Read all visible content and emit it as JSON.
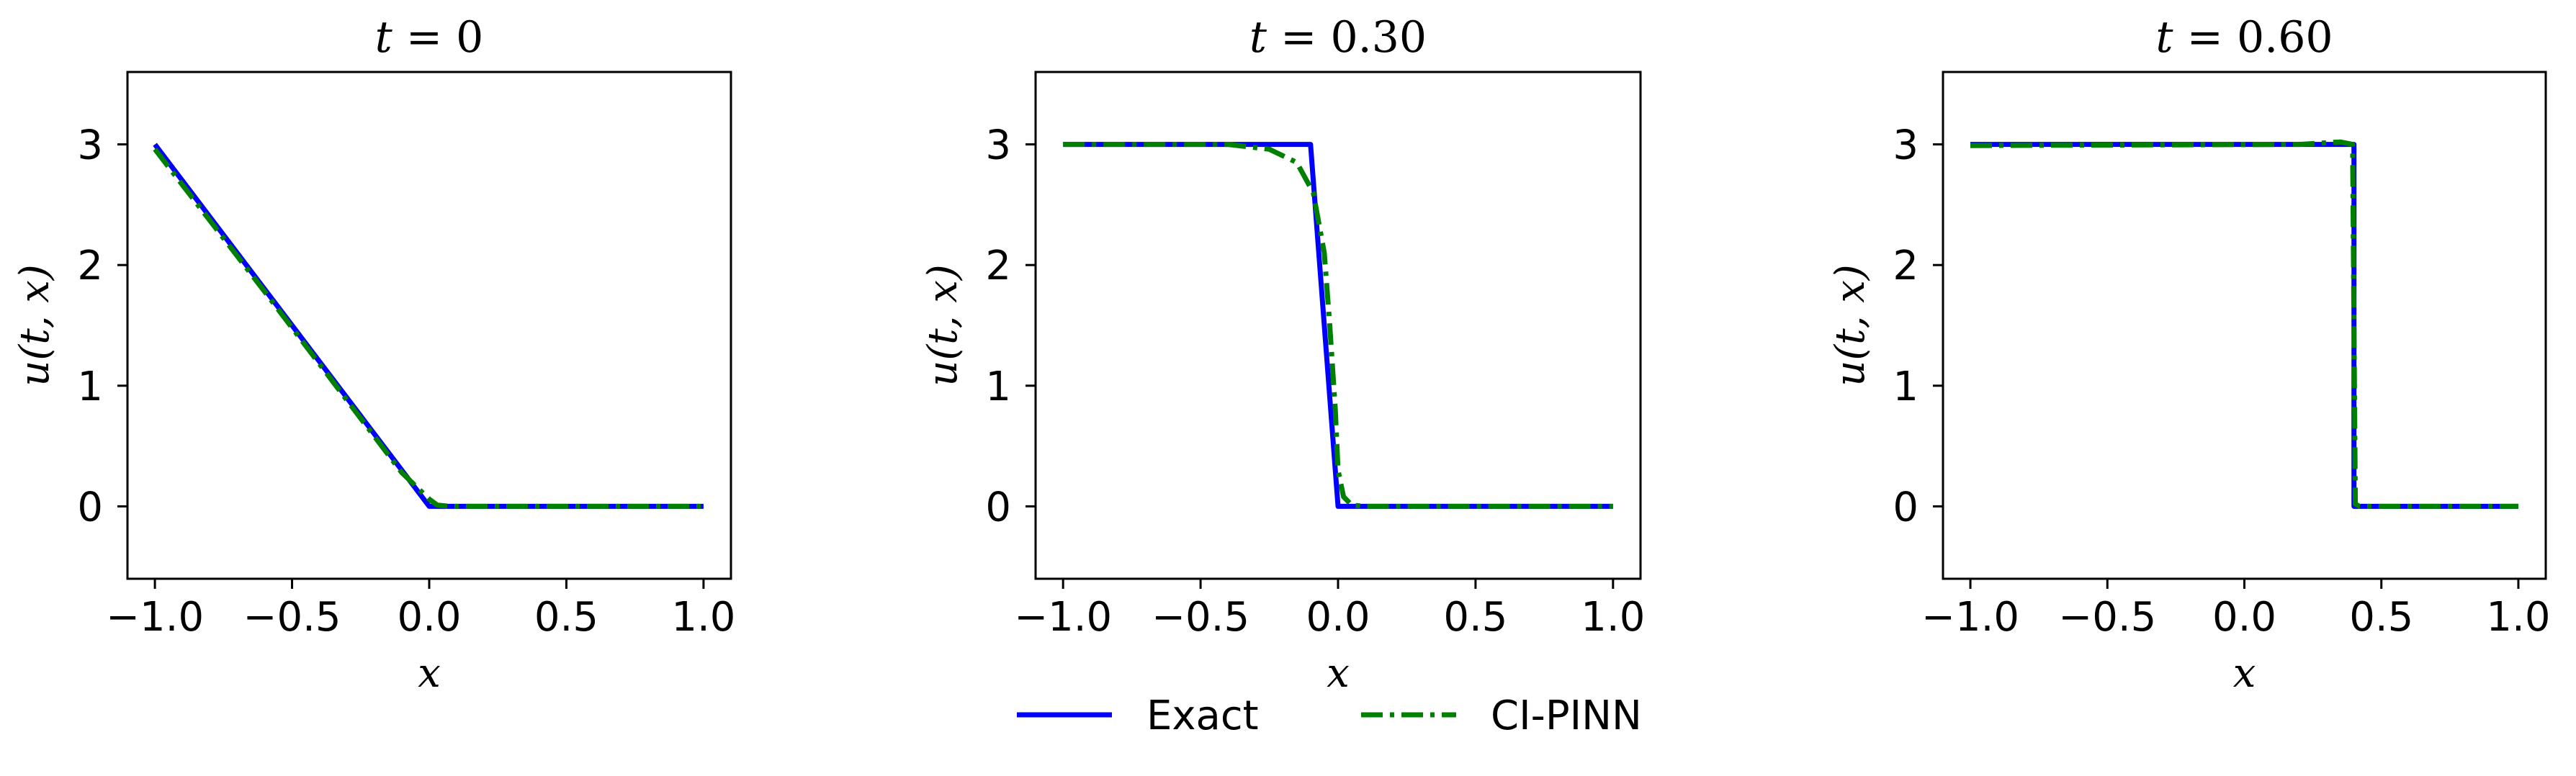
{
  "legend": {
    "entries": [
      {
        "label": "Exact",
        "color": "#0000ff",
        "style": "solid"
      },
      {
        "label": "CI-PINN",
        "color": "#008000",
        "style": "dashdot"
      }
    ],
    "placement": "bottom-center"
  },
  "chart_data": [
    {
      "type": "line",
      "title": "t = 0",
      "xlabel": "x",
      "ylabel": "u(t, x)",
      "xlim": [
        -1.1,
        1.1
      ],
      "ylim": [
        -0.6,
        3.6
      ],
      "xticks": [
        -1.0,
        -0.5,
        0.0,
        0.5,
        1.0
      ],
      "xtick_labels": [
        "−1.0",
        "−0.5",
        "0.0",
        "0.5",
        "1.0"
      ],
      "yticks": [
        0,
        1,
        2,
        3
      ],
      "ytick_labels": [
        "0",
        "1",
        "2",
        "3"
      ],
      "grid": false,
      "series": [
        {
          "name": "Exact",
          "color": "#0000ff",
          "style": "solid",
          "x": [
            -1.0,
            0.0,
            1.0
          ],
          "y": [
            3.0,
            0.0,
            0.0
          ]
        },
        {
          "name": "CI-PINN",
          "color": "#008000",
          "style": "dashdot",
          "x": [
            -1.0,
            -0.6,
            -0.3,
            -0.1,
            0.0,
            0.03,
            0.08,
            0.2,
            1.0
          ],
          "y": [
            2.96,
            1.78,
            0.88,
            0.28,
            0.06,
            0.01,
            0.0,
            0.0,
            0.0
          ]
        }
      ]
    },
    {
      "type": "line",
      "title": "t = 0.30",
      "xlabel": "x",
      "ylabel": "u(t, x)",
      "xlim": [
        -1.1,
        1.1
      ],
      "ylim": [
        -0.6,
        3.6
      ],
      "xticks": [
        -1.0,
        -0.5,
        0.0,
        0.5,
        1.0
      ],
      "xtick_labels": [
        "−1.0",
        "−0.5",
        "0.0",
        "0.5",
        "1.0"
      ],
      "yticks": [
        0,
        1,
        2,
        3
      ],
      "ytick_labels": [
        "0",
        "1",
        "2",
        "3"
      ],
      "grid": false,
      "series": [
        {
          "name": "Exact",
          "color": "#0000ff",
          "style": "solid",
          "x": [
            -1.0,
            -0.1,
            0.0,
            1.0
          ],
          "y": [
            3.0,
            3.0,
            0.0,
            0.0
          ]
        },
        {
          "name": "CI-PINN",
          "color": "#008000",
          "style": "dashdot",
          "x": [
            -1.0,
            -0.4,
            -0.25,
            -0.15,
            -0.09,
            -0.05,
            -0.03,
            -0.01,
            0.0,
            0.02,
            0.05,
            0.1,
            1.0
          ],
          "y": [
            3.0,
            3.0,
            2.96,
            2.85,
            2.6,
            2.1,
            1.5,
            0.8,
            0.3,
            0.08,
            0.01,
            0.0,
            0.0
          ]
        }
      ]
    },
    {
      "type": "line",
      "title": "t = 0.60",
      "xlabel": "x",
      "ylabel": "u(t, x)",
      "xlim": [
        -1.1,
        1.1
      ],
      "ylim": [
        -0.6,
        3.6
      ],
      "xticks": [
        -1.0,
        -0.5,
        0.0,
        0.5,
        1.0
      ],
      "xtick_labels": [
        "−1.0",
        "−0.5",
        "0.0",
        "0.5",
        "1.0"
      ],
      "yticks": [
        0,
        1,
        2,
        3
      ],
      "ytick_labels": [
        "0",
        "1",
        "2",
        "3"
      ],
      "grid": false,
      "series": [
        {
          "name": "Exact",
          "color": "#0000ff",
          "style": "solid",
          "x": [
            -1.0,
            0.4,
            0.4,
            1.0
          ],
          "y": [
            3.0,
            3.0,
            0.0,
            0.0
          ]
        },
        {
          "name": "CI-PINN",
          "color": "#008000",
          "style": "dashdot",
          "x": [
            -1.0,
            0.2,
            0.35,
            0.395,
            0.4,
            0.405,
            0.42,
            1.0
          ],
          "y": [
            2.99,
            3.0,
            3.02,
            3.0,
            1.5,
            0.02,
            0.0,
            0.0
          ]
        }
      ]
    }
  ]
}
